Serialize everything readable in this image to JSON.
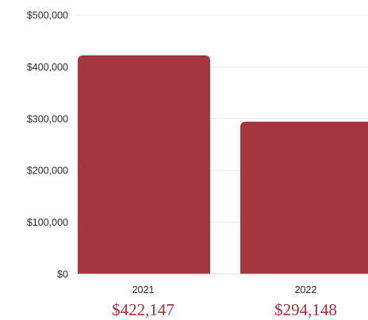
{
  "colors": {
    "bar": "#a3363e",
    "value_text": "#9e3239",
    "gridline": "#ececec",
    "axis": "#d8d8d8",
    "text": "#2a2a2a"
  },
  "chart_data": {
    "type": "bar",
    "categories": [
      "2021",
      "2022"
    ],
    "values": [
      422147,
      294148
    ],
    "value_labels": [
      "$422,147",
      "$294,148"
    ],
    "title": "",
    "xlabel": "",
    "ylabel": "",
    "ylim": [
      0,
      500000
    ],
    "yticks": [
      0,
      100000,
      200000,
      300000,
      400000,
      500000
    ],
    "ytick_labels": [
      "$0",
      "$100,000",
      "$200,000",
      "$300,000",
      "$400,000",
      "$500,000"
    ],
    "grid": true
  }
}
